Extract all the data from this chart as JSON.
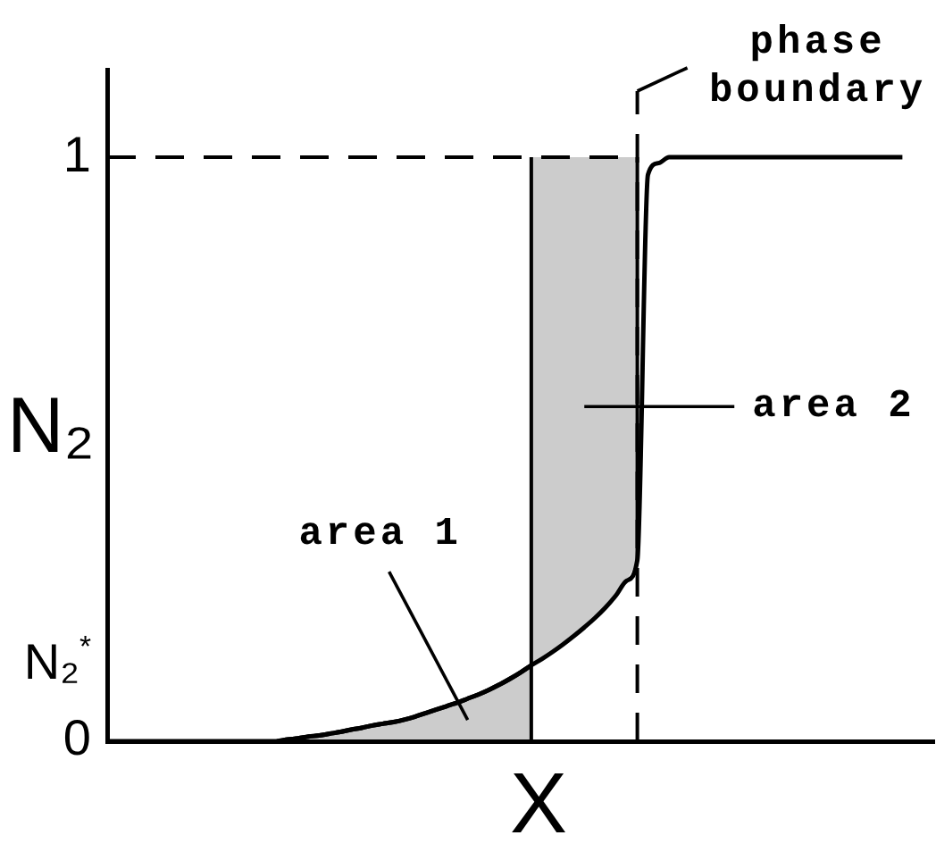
{
  "chart_data": {
    "type": "line",
    "xlabel": "X",
    "ylabel": "N₂",
    "categories": [
      null,
      null,
      null,
      null,
      null,
      null,
      null,
      null,
      null,
      null,
      null,
      null,
      null,
      null,
      null,
      null,
      null,
      null,
      null,
      null,
      null,
      null,
      null,
      null,
      null,
      null,
      null,
      null,
      null,
      null,
      null,
      null,
      null,
      null,
      null,
      null,
      null,
      null,
      null,
      null,
      null,
      null,
      null,
      null,
      null,
      null,
      null,
      null,
      null,
      null,
      null,
      null,
      null,
      null,
      null,
      null,
      null,
      null,
      null,
      null,
      null,
      null,
      null,
      null,
      null,
      null,
      null,
      null,
      null,
      null,
      null,
      null,
      null,
      null,
      null,
      null,
      null,
      null,
      null
    ],
    "ylim": [
      0,
      1.15
    ],
    "yticks": [
      0,
      {
        "value": 0.13,
        "label": "N₂$^{*}$"
      },
      1
    ],
    "marker": "none",
    "series": [
      {
        "color": "#000000",
        "line_style": "solid",
        "values": [
          0,
          0,
          0,
          0,
          0,
          0,
          0,
          0,
          0,
          0,
          0,
          0,
          0,
          0,
          0,
          0,
          0,
          0.003,
          0.005,
          0.008,
          0.01,
          0.013,
          0.016,
          0.02,
          0.023,
          0.027,
          0.03,
          0.033,
          0.037,
          0.042,
          0.048,
          0.054,
          0.06,
          0.066,
          0.073,
          0.08,
          0.088,
          0.097,
          0.107,
          0.118,
          0.13,
          0.141,
          0.153,
          0.166,
          0.18,
          0.195,
          0.211,
          0.229,
          0.25,
          0.275,
          0.31,
          0.97,
          0.99,
          1,
          1,
          1,
          1,
          1,
          1,
          1,
          1,
          1,
          1,
          1,
          1,
          1,
          1,
          1,
          1,
          1,
          1,
          1,
          1,
          1,
          1,
          1,
          null,
          null,
          null
        ],
        "lower": [
          null,
          null,
          null,
          null,
          null,
          null,
          null,
          null,
          null,
          null,
          null,
          null,
          null,
          null,
          null,
          null,
          null,
          null,
          null,
          null,
          null,
          null,
          null,
          null,
          null,
          null,
          null,
          null,
          null,
          null,
          null,
          null,
          null,
          null,
          null,
          null,
          null,
          null,
          null,
          null,
          0.13,
          0.141,
          0.153,
          0.166,
          0.18,
          0.195,
          0.211,
          0.229,
          0.25,
          0.275,
          0.31,
          null,
          null,
          null,
          null,
          null,
          null,
          null,
          null,
          null,
          null,
          null,
          null,
          null,
          null,
          null,
          null,
          null,
          null,
          null,
          null,
          null,
          null,
          null,
          null,
          null,
          null,
          null,
          null
        ],
        "upper": [
          null,
          null,
          null,
          null,
          null,
          null,
          null,
          null,
          null,
          null,
          null,
          null,
          null,
          null,
          null,
          null,
          null,
          null,
          null,
          null,
          null,
          null,
          null,
          null,
          null,
          null,
          null,
          null,
          null,
          null,
          null,
          null,
          null,
          null,
          null,
          null,
          null,
          null,
          null,
          null,
          1,
          1,
          1,
          1,
          1,
          1,
          1,
          1,
          1,
          1,
          1,
          null,
          null,
          null,
          null,
          null,
          null,
          null,
          null,
          null,
          null,
          null,
          null,
          null,
          null,
          null,
          null,
          null,
          null,
          null,
          null,
          null,
          null,
          null,
          null,
          null,
          null,
          null,
          null
        ]
      },
      {
        "type": "area",
        "name": "area 1",
        "color": "#000000",
        "values": [
          null,
          null,
          null,
          null,
          null,
          null,
          null,
          null,
          null,
          null,
          null,
          null,
          null,
          null,
          null,
          null,
          0,
          0.003,
          0.005,
          0.008,
          0.01,
          0.013,
          0.016,
          0.02,
          0.023,
          0.027,
          0.03,
          0.033,
          0.037,
          0.042,
          0.048,
          0.054,
          0.06,
          0.066,
          0.073,
          0.08,
          0.088,
          0.097,
          0.107,
          0.118,
          0.13,
          null,
          null,
          null,
          null,
          null,
          null,
          null,
          null,
          null,
          null,
          null,
          null,
          null,
          null,
          null,
          null,
          null,
          null,
          null,
          null,
          null,
          null,
          null,
          null,
          null,
          null,
          null,
          null,
          null,
          null,
          null,
          null,
          null,
          null,
          null,
          null,
          null,
          null
        ]
      },
      {
        "color": "#000000",
        "line_style": "dashed",
        "values": [
          1,
          1,
          1,
          1,
          1,
          1,
          1,
          1,
          1,
          1,
          1,
          1,
          1,
          1,
          1,
          1,
          1,
          1,
          1,
          1,
          1,
          1,
          1,
          1,
          1,
          1,
          1,
          1,
          1,
          1,
          1,
          1,
          1,
          1,
          1,
          1,
          1,
          1,
          1,
          1,
          1,
          1,
          1,
          1,
          1,
          1,
          1,
          1,
          1,
          1,
          1,
          null,
          null,
          null,
          null,
          null,
          null,
          null,
          null,
          null,
          null,
          null,
          null,
          null,
          null,
          null,
          null,
          null,
          null,
          null,
          null,
          null,
          null,
          null,
          null,
          null,
          null,
          null,
          null
        ]
      }
    ],
    "annotations": [
      "phase boundary",
      "area 2"
    ]
  }
}
